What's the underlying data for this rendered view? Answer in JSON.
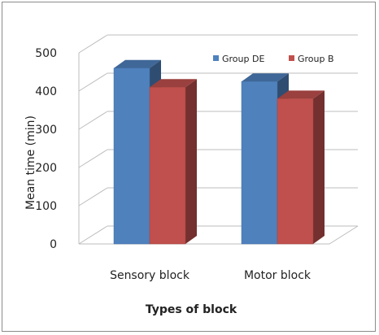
{
  "chart_data": {
    "type": "bar",
    "categories": [
      "Sensory block",
      "Motor block"
    ],
    "series": [
      {
        "name": "Group DE",
        "values": [
          460,
          425
        ],
        "color": "#4f81bd"
      },
      {
        "name": "Group B",
        "values": [
          410,
          380
        ],
        "color": "#c0504d"
      }
    ],
    "xlabel": "Types of block",
    "ylabel": "Mean time (min)",
    "ylim": [
      0,
      500
    ],
    "yticks": [
      0,
      100,
      200,
      300,
      400,
      500
    ],
    "grid": true,
    "legend": "top-right",
    "style": "3d-clustered"
  }
}
